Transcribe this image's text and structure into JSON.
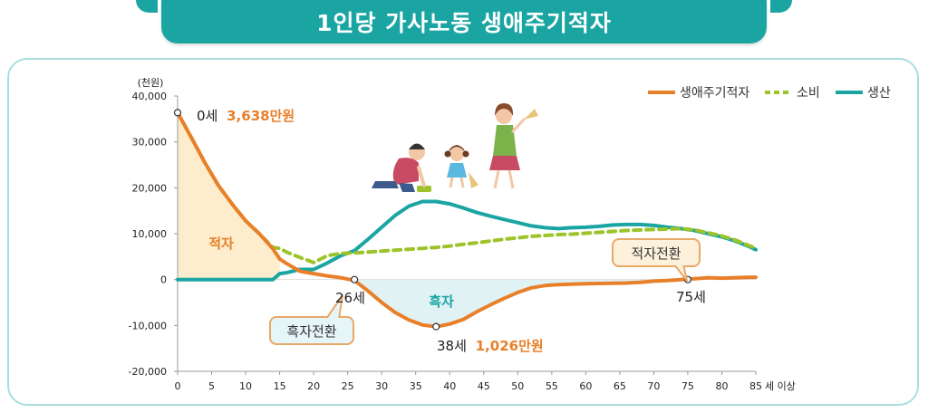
{
  "title": "1인당 가사노동 생애주기적자",
  "chart_data": {
    "type": "line",
    "title": "1인당 가사노동 생애주기적자",
    "ylabel": "(천원)",
    "xlabel": "",
    "x_last_suffix": "세 이상",
    "ylim": [
      -20000,
      40000
    ],
    "xlim": [
      0,
      85
    ],
    "yticks": [
      40000,
      30000,
      20000,
      10000,
      0,
      -10000,
      -20000
    ],
    "ytick_labels": [
      "40,000",
      "30,000",
      "20,000",
      "10,000",
      "0",
      "-10,000",
      "-20,000"
    ],
    "xticks": [
      0,
      5,
      10,
      15,
      20,
      25,
      30,
      35,
      40,
      45,
      50,
      55,
      60,
      65,
      70,
      75,
      80,
      85
    ],
    "legend_position": "top-right",
    "grid": false,
    "x": [
      0,
      2,
      4,
      6,
      8,
      10,
      12,
      14,
      15,
      16,
      18,
      20,
      22,
      24,
      26,
      28,
      30,
      32,
      34,
      36,
      38,
      40,
      42,
      44,
      46,
      48,
      50,
      52,
      54,
      56,
      58,
      60,
      62,
      64,
      66,
      68,
      70,
      72,
      74,
      76,
      78,
      80,
      82,
      84,
      85
    ],
    "series": [
      {
        "name": "생애주기적자",
        "color": "#e8802a",
        "style": "solid",
        "values": [
          36380,
          31000,
          25500,
          20500,
          16500,
          12800,
          10000,
          6700,
          4500,
          3500,
          1800,
          1300,
          800,
          400,
          -200,
          -2500,
          -5000,
          -7200,
          -8800,
          -9900,
          -10260,
          -9700,
          -8700,
          -7000,
          -5500,
          -4100,
          -2800,
          -1800,
          -1300,
          -1100,
          -1000,
          -900,
          -850,
          -800,
          -750,
          -600,
          -350,
          -200,
          0,
          200,
          400,
          300,
          400,
          500,
          500
        ]
      },
      {
        "name": "소비",
        "color": "#9cc32a",
        "style": "dashed",
        "values": [
          36380,
          31000,
          25500,
          20500,
          16500,
          12800,
          10000,
          7000,
          6800,
          6000,
          4800,
          3700,
          5200,
          5700,
          5800,
          6000,
          6200,
          6400,
          6600,
          6800,
          7000,
          7300,
          7700,
          8000,
          8400,
          8800,
          9100,
          9400,
          9600,
          9800,
          9900,
          10100,
          10300,
          10500,
          10700,
          10800,
          10900,
          11000,
          11100,
          10800,
          10200,
          9500,
          8600,
          7400,
          6800
        ]
      },
      {
        "name": "생산",
        "color": "#1aa5a3",
        "style": "solid",
        "values": [
          0,
          0,
          0,
          0,
          0,
          0,
          0,
          0,
          1300,
          1500,
          2200,
          2200,
          3600,
          5200,
          6300,
          8800,
          11400,
          14000,
          16000,
          17000,
          17000,
          16500,
          15600,
          14600,
          13800,
          13100,
          12400,
          11700,
          11300,
          11100,
          11300,
          11400,
          11600,
          11900,
          12000,
          12000,
          11800,
          11400,
          11100,
          10700,
          10000,
          9300,
          8400,
          7200,
          6500
        ]
      }
    ],
    "annotations": [
      {
        "age_label": "0세",
        "value_label": "3,638만원",
        "x": 0,
        "y": 36380
      },
      {
        "age_label": "26세",
        "x": 26,
        "y": 0
      },
      {
        "age_label": "38세",
        "value_label": "1,026만원",
        "x": 38,
        "y": -10260
      },
      {
        "age_label": "75세",
        "x": 75,
        "y": 0
      }
    ],
    "callouts": {
      "surplus_turn": "흑자전환",
      "deficit_turn": "적자전환"
    },
    "region_labels": {
      "deficit": "적자",
      "surplus": "흑자"
    }
  }
}
